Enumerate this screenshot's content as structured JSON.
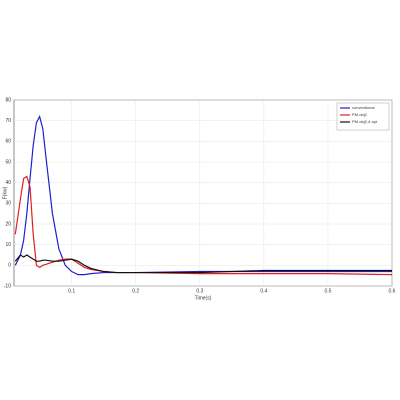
{
  "chart_data": {
    "type": "line",
    "xlabel": "Time(s)",
    "ylabel": "F(kw)",
    "x": [
      0.012,
      0.02,
      0.025,
      0.03,
      0.035,
      0.04,
      0.045,
      0.05,
      0.055,
      0.06,
      0.07,
      0.08,
      0.09,
      0.1,
      0.11,
      0.12,
      0.13,
      0.15,
      0.17,
      0.2,
      0.3,
      0.4,
      0.5,
      0.6
    ],
    "series": [
      {
        "name": "conventional",
        "color": "#1f1fd0",
        "values": [
          0,
          5,
          12,
          25,
          42,
          58,
          69,
          72,
          66,
          52,
          25,
          8,
          0,
          -3,
          -4.5,
          -4.5,
          -4,
          -3.5,
          -3.5,
          -3.5,
          -3,
          -3,
          -3,
          -3
        ]
      },
      {
        "name": "PM-obj2",
        "color": "#e02020",
        "values": [
          15,
          32,
          42,
          43,
          38,
          15,
          0,
          -1,
          0,
          0.5,
          1.5,
          2.5,
          3,
          3,
          1,
          -1,
          -2,
          -3,
          -3.5,
          -3.5,
          -4,
          -4,
          -4,
          -4.5
        ]
      },
      {
        "name": "PM-obj2,4-opt",
        "color": "#111111",
        "values": [
          2,
          5,
          4,
          5,
          4,
          3,
          2,
          2,
          2.5,
          2.5,
          2,
          2,
          2.5,
          3,
          2,
          0,
          -1.5,
          -3,
          -3.5,
          -3.5,
          -3.5,
          -2.5,
          -2.5,
          -2.5
        ]
      }
    ],
    "xlim": [
      0.01,
      0.6
    ],
    "xticks": [
      0.1,
      0.2,
      0.3,
      0.4,
      0.5,
      0.6
    ],
    "ylim": [
      -10,
      80
    ],
    "yticks": [
      -10,
      0,
      10,
      20,
      30,
      40,
      50,
      60,
      70,
      80
    ],
    "grid": true,
    "legend": "top-right"
  }
}
